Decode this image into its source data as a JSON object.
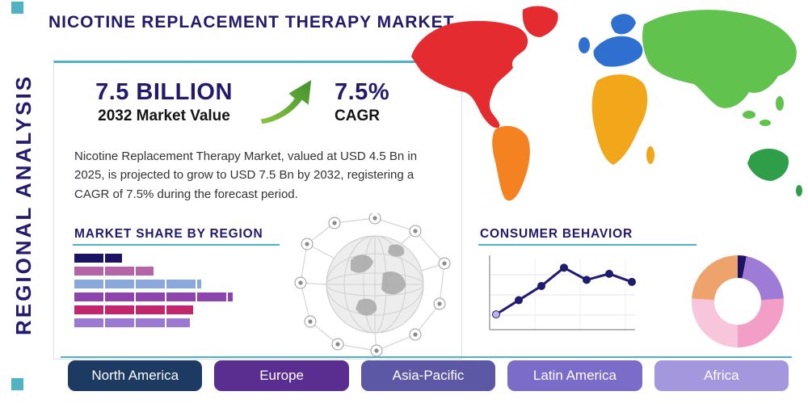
{
  "page": {
    "title": "NICOTINE REPLACEMENT THERAPY MARKET",
    "side_label": "REGIONAL ANALYSIS",
    "accent_teal": "#4fb3c4",
    "navy": "#211a6d"
  },
  "stats": {
    "market_value": "7.5 BILLION",
    "market_value_label": "2032 Market Value",
    "cagr_value": "7.5%",
    "cagr_label": "CAGR",
    "arrow_icon": "growth-arrow-icon",
    "arrow_color": "#5fae35"
  },
  "description": "Nicotine Replacement Therapy Market, valued at USD 4.5 Bn in 2025, is projected to grow to USD 7.5 Bn by 2032, registering a CAGR of 7.5% during the forecast period.",
  "sections": {
    "market_share_title": "MARKET SHARE BY REGION",
    "consumer_behavior_title": "CONSUMER BEHAVIOR"
  },
  "region_buttons": [
    {
      "label": "North America",
      "color": "#1d3a63"
    },
    {
      "label": "Europe",
      "color": "#5a2d91"
    },
    {
      "label": "Asia-Pacific",
      "color": "#5c58a6"
    },
    {
      "label": "Latin America",
      "color": "#7a6cc8"
    },
    {
      "label": "Africa",
      "color": "#a497dd"
    }
  ],
  "map": {
    "name": "world-map-by-region",
    "region_colors": {
      "north_america": "#e42b2f",
      "greenland": "#e42b2f",
      "south_america": "#f58220",
      "europe": "#2f6fd0",
      "africa": "#f2a71b",
      "asia": "#62c24e",
      "australia": "#2f9e48"
    }
  },
  "chart_data": [
    {
      "type": "bar",
      "title": "MARKET SHARE BY REGION",
      "orientation": "horizontal",
      "categories_labeled": false,
      "unit": "percent of longest bar (estimated from pixel widths)",
      "values": [
        30,
        50,
        80,
        100,
        75,
        73
      ],
      "colors": [
        "#1b1464",
        "#b565a7",
        "#8aa8dc",
        "#8e44ad",
        "#c2266b",
        "#9b79d2"
      ]
    },
    {
      "type": "line",
      "title": "CONSUMER BEHAVIOR",
      "x": [
        1,
        2,
        3,
        4,
        5,
        6,
        7
      ],
      "values": [
        1.5,
        2.9,
        4.3,
        6.1,
        4.9,
        5.5,
        4.7
      ],
      "ylim": [
        0,
        7
      ],
      "axes_labeled": false,
      "grid": true,
      "line_color": "#1e1b70",
      "marker_color": "#1e1b70",
      "first_marker_color": "#c3b2ea"
    },
    {
      "type": "pie",
      "donut": true,
      "labels_visible": false,
      "segments": [
        {
          "color": "#1b1464",
          "value": 3
        },
        {
          "color": "#9f7bd8",
          "value": 21
        },
        {
          "color": "#f29ec6",
          "value": 26
        },
        {
          "color": "#f7c6da",
          "value": 26
        },
        {
          "color": "#eda36b",
          "value": 24
        }
      ]
    }
  ]
}
